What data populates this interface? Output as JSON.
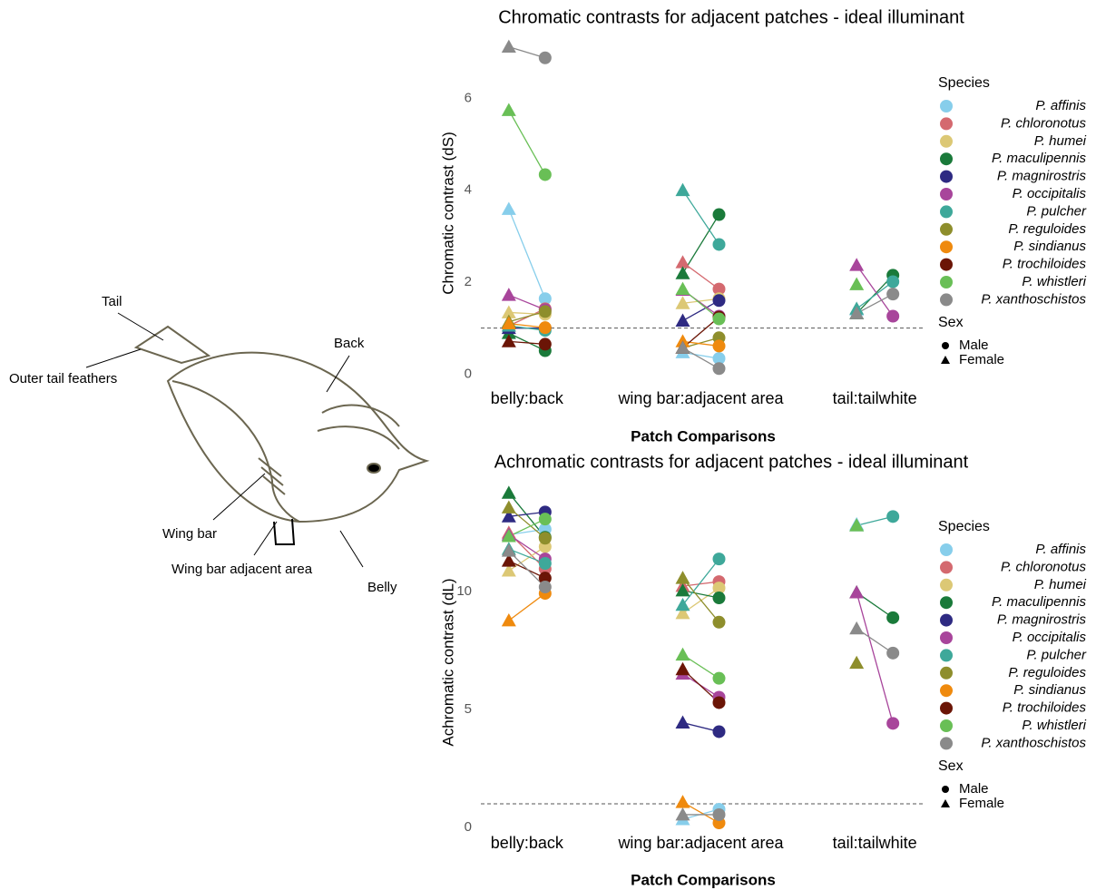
{
  "diagram": {
    "labels": [
      "Tail",
      "Outer tail feathers",
      "Back",
      "Wing bar",
      "Wing bar adjacent area",
      "Belly"
    ]
  },
  "chart_data": [
    {
      "type": "dot",
      "title": "Chromatic contrasts for adjacent patches - ideal illuminant",
      "x_label": "Patch Comparisons",
      "y_label": "Chromatic contrast (dS)",
      "categories": [
        "belly:back",
        "wing bar:adjacent area",
        "tail:tailwhite"
      ],
      "ylim": [
        -0.25,
        7.25
      ],
      "yticks": [
        0,
        2,
        4,
        6
      ],
      "reference_line": 1,
      "legend_title": "Species",
      "sex_title": "Sex",
      "sex_labels": [
        "Male",
        "Female"
      ],
      "series": [
        {
          "name": "P. affinis",
          "color": "#87ceeb",
          "female": [
            3.59,
            0.47,
            1.4
          ],
          "male": [
            1.64,
            0.34,
            null
          ]
        },
        {
          "name": "P. chloronotus",
          "color": "#d4696f",
          "female": [
            1.05,
            2.43,
            null
          ],
          "male": [
            1.42,
            1.85,
            null
          ]
        },
        {
          "name": "P. humei",
          "color": "#dcc875",
          "female": [
            1.34,
            1.54,
            null
          ],
          "male": [
            1.3,
            1.64,
            null
          ]
        },
        {
          "name": "P. maculipennis",
          "color": "#1a7a3a",
          "female": [
            0.89,
            2.19,
            1.32
          ],
          "male": [
            0.51,
            3.47,
            2.15
          ]
        },
        {
          "name": "P. magnirostris",
          "color": "#2e2a82",
          "female": [
            1.0,
            1.16,
            null
          ],
          "male": [
            1.0,
            1.6,
            null
          ]
        },
        {
          "name": "P. occipitalis",
          "color": "#a8459b",
          "female": [
            1.72,
            1.83,
            2.37
          ],
          "male": [
            1.4,
            1.26,
            1.26
          ]
        },
        {
          "name": "P. pulcher",
          "color": "#3ea89a",
          "female": [
            1.05,
            4.0,
            1.42
          ],
          "male": [
            0.95,
            2.82,
            2.01
          ]
        },
        {
          "name": "P. reguloides",
          "color": "#8e8e2c",
          "female": [
            1.14,
            0.57,
            null
          ],
          "male": [
            1.36,
            0.79,
            null
          ]
        },
        {
          "name": "P. sindianus",
          "color": "#ef8a0e",
          "female": [
            1.1,
            0.71,
            null
          ],
          "male": [
            1.01,
            0.61,
            null
          ]
        },
        {
          "name": "P. trochiloides",
          "color": "#6b1506",
          "female": [
            0.71,
            0.57,
            null
          ],
          "male": [
            0.65,
            1.24,
            null
          ]
        },
        {
          "name": "P. whistleri",
          "color": "#69bf56",
          "female": [
            5.74,
            1.85,
            1.95
          ],
          "male": [
            4.34,
            1.2,
            null
          ]
        },
        {
          "name": "P. xanthoschistos",
          "color": "#8a8a8a",
          "female": [
            7.12,
            0.57,
            1.32
          ],
          "male": [
            6.88,
            0.12,
            1.74
          ]
        }
      ]
    },
    {
      "type": "dot",
      "title": "Achromatic contrasts for adjacent patches - ideal illuminant",
      "x_label": "Patch Comparisons",
      "y_label": "Achromatic contrast (dL)",
      "categories": [
        "belly:back",
        "wing bar:adjacent area",
        "tail:tailwhite"
      ],
      "ylim": [
        -0.5,
        14.5
      ],
      "yticks": [
        0,
        5,
        10
      ],
      "reference_line": 1,
      "legend_title": "Species",
      "sex_title": "Sex",
      "sex_labels": [
        "Male",
        "Female"
      ],
      "series": [
        {
          "name": "P. affinis",
          "color": "#87ceeb",
          "female": [
            12.41,
            0.34,
            12.85
          ],
          "male": [
            12.64,
            0.77,
            null
          ]
        },
        {
          "name": "P. chloronotus",
          "color": "#d4696f",
          "female": [
            12.49,
            10.23,
            null
          ],
          "male": [
            10.96,
            10.42,
            null
          ]
        },
        {
          "name": "P. humei",
          "color": "#dcc875",
          "female": [
            10.88,
            9.08,
            null
          ],
          "male": [
            11.9,
            10.15,
            null
          ]
        },
        {
          "name": "P. maculipennis",
          "color": "#1a7a3a",
          "female": [
            14.18,
            10.04,
            9.96
          ],
          "male": [
            12.3,
            9.73,
            8.89
          ]
        },
        {
          "name": "P. magnirostris",
          "color": "#2e2a82",
          "female": [
            13.18,
            4.44,
            null
          ],
          "male": [
            13.37,
            4.06,
            null
          ]
        },
        {
          "name": "P. occipitalis",
          "color": "#a8459b",
          "female": [
            12.41,
            6.51,
            9.96
          ],
          "male": [
            11.38,
            5.52,
            4.41
          ]
        },
        {
          "name": "P. pulcher",
          "color": "#3ea89a",
          "female": [
            11.8,
            9.43,
            12.8
          ],
          "male": [
            11.19,
            11.38,
            13.18
          ]
        },
        {
          "name": "P. reguloides",
          "color": "#8e8e2c",
          "female": [
            13.56,
            10.57,
            6.97
          ],
          "male": [
            12.26,
            8.7,
            null
          ]
        },
        {
          "name": "P. sindianus",
          "color": "#ef8a0e",
          "female": [
            8.77,
            1.07,
            null
          ],
          "male": [
            9.92,
            0.19,
            null
          ]
        },
        {
          "name": "P. trochiloides",
          "color": "#6b1506",
          "female": [
            11.3,
            6.7,
            null
          ],
          "male": [
            10.57,
            5.29,
            null
          ]
        },
        {
          "name": "P. whistleri",
          "color": "#69bf56",
          "female": [
            12.34,
            7.32,
            12.8
          ],
          "male": [
            13.07,
            6.32,
            null
          ]
        },
        {
          "name": "P. xanthoschistos",
          "color": "#8a8a8a",
          "female": [
            11.72,
            0.54,
            8.43
          ],
          "male": [
            10.19,
            0.54,
            7.39
          ]
        }
      ]
    }
  ]
}
